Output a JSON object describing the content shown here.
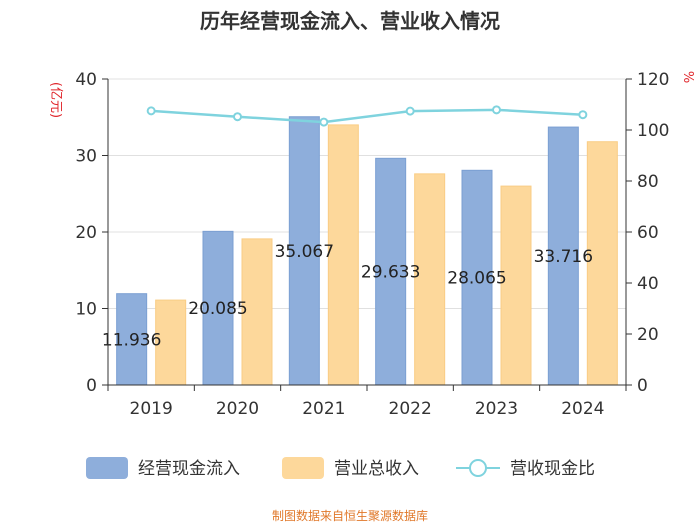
{
  "chart_data": {
    "type": "bar",
    "title": "历年经营现金流入、营业收入情况",
    "categories": [
      "2019",
      "2020",
      "2021",
      "2022",
      "2023",
      "2024"
    ],
    "series": [
      {
        "name": "经营现金流入",
        "kind": "bar",
        "axis": "left",
        "values": [
          11.936,
          20.085,
          35.067,
          29.633,
          28.065,
          33.716
        ],
        "labels": [
          "11.936",
          "20.085",
          "35.067",
          "29.633",
          "28.065",
          "33.716"
        ]
      },
      {
        "name": "营业总收入",
        "kind": "bar",
        "axis": "left",
        "values": [
          11.1,
          19.1,
          34.0,
          27.6,
          26.0,
          31.8
        ]
      },
      {
        "name": "营收现金比",
        "kind": "line",
        "axis": "right",
        "values": [
          107.5,
          105.2,
          103.1,
          107.4,
          107.9,
          106.0
        ]
      }
    ],
    "yleft": {
      "label": "(亿元)",
      "min": 0,
      "max": 40,
      "ticks": [
        0,
        10,
        20,
        30,
        40
      ]
    },
    "yright": {
      "label": "%",
      "min": 0,
      "max": 120,
      "ticks": [
        0,
        20,
        40,
        60,
        80,
        100,
        120
      ]
    },
    "colors": {
      "cash": "#8eaedb",
      "cash_stroke": "#7b9fd2",
      "revenue": "#fdd89b",
      "revenue_stroke": "#f9cd85",
      "ratio": "#7fd3de",
      "axis_label": "#e0252b",
      "grid": "#e0e0e0",
      "axis": "#333333",
      "footer": "#e0782a"
    },
    "legend": [
      "经营现金流入",
      "营业总收入",
      "营收现金比"
    ],
    "source": "制图数据来自恒生聚源数据库"
  }
}
